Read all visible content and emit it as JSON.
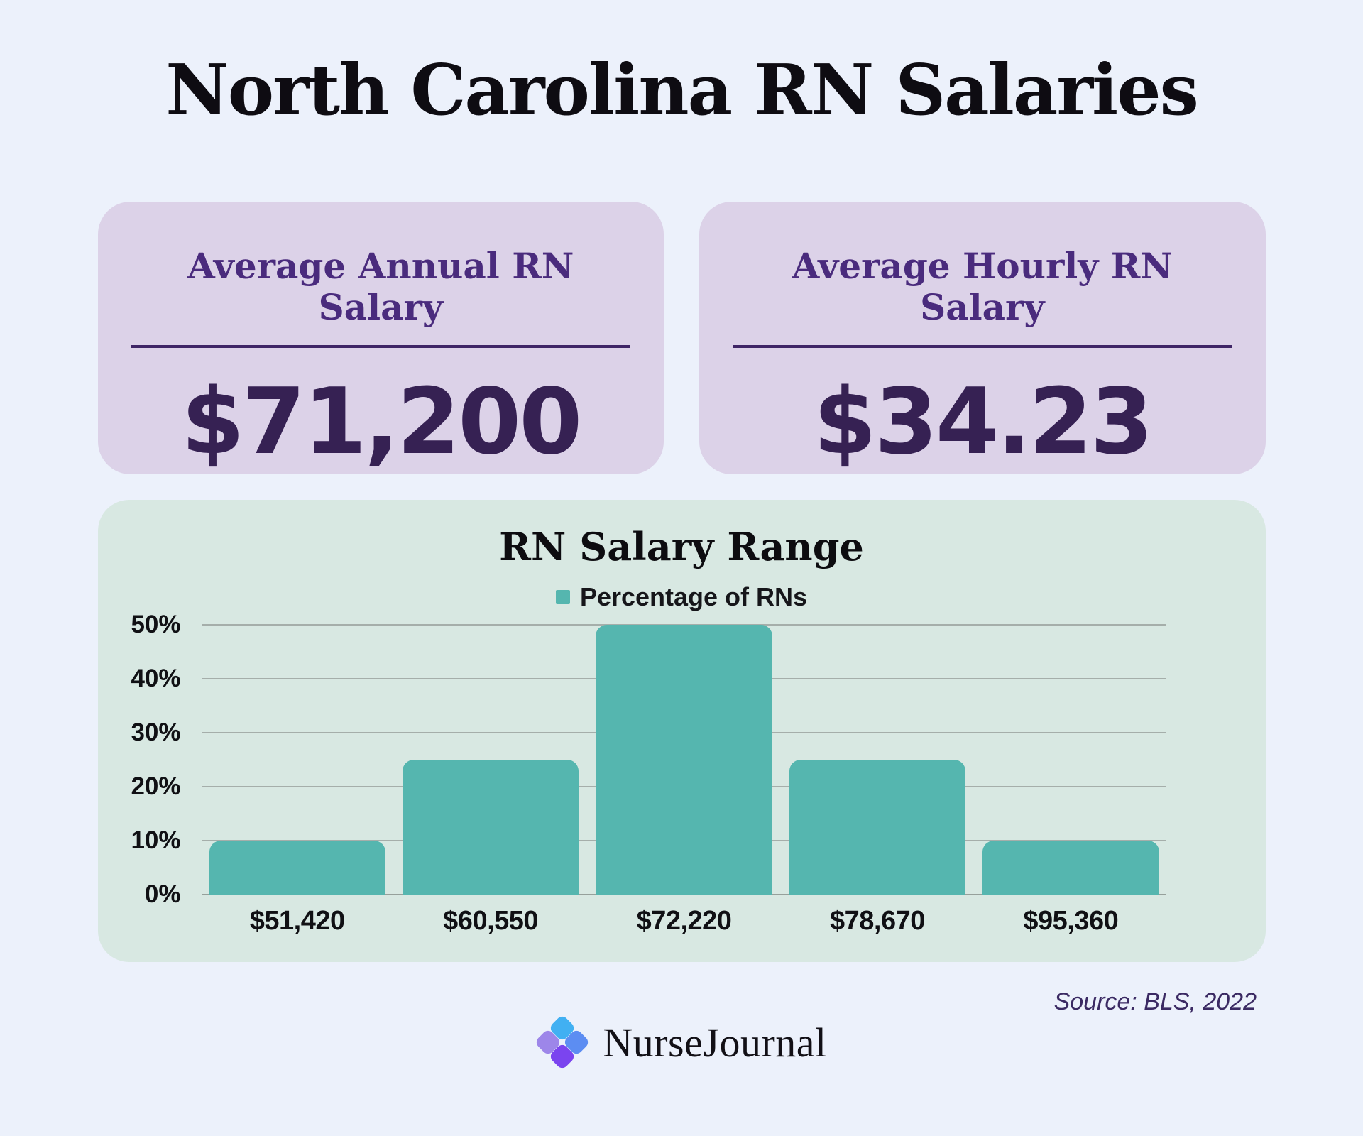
{
  "title": "North Carolina RN Salaries",
  "stat_cards": [
    {
      "label": "Average Annual RN Salary",
      "value": "$71,200"
    },
    {
      "label": "Average Hourly RN Salary",
      "value": "$34.23"
    }
  ],
  "chart_data": {
    "type": "bar",
    "title": "RN Salary Range",
    "legend": "Percentage of RNs",
    "legend_position": "top",
    "categories": [
      "$51,420",
      "$60,550",
      "$72,220",
      "$78,670",
      "$95,360"
    ],
    "values": [
      10,
      25,
      50,
      25,
      10
    ],
    "unit": "%",
    "ylim": [
      0,
      50
    ],
    "yticks": [
      0,
      10,
      20,
      30,
      40,
      50
    ],
    "grid": true,
    "xlabel": "",
    "ylabel": ""
  },
  "source": "Source: BLS, 2022",
  "logo": {
    "text": "NurseJournal"
  },
  "colors": {
    "background": "#ecf1fb",
    "card_background": "#dcd2e8",
    "card_label": "#4a2b7d",
    "card_value": "#362153",
    "panel_background": "#d8e8e2",
    "bar": "#55b6af",
    "gridline": "#a5aeaa",
    "source_text": "#3b2a63",
    "logo_petal_top": "#41b0f2",
    "logo_petal_left": "#9d86e9",
    "logo_petal_right": "#5c8df2",
    "logo_petal_bottom": "#7b44ef"
  }
}
